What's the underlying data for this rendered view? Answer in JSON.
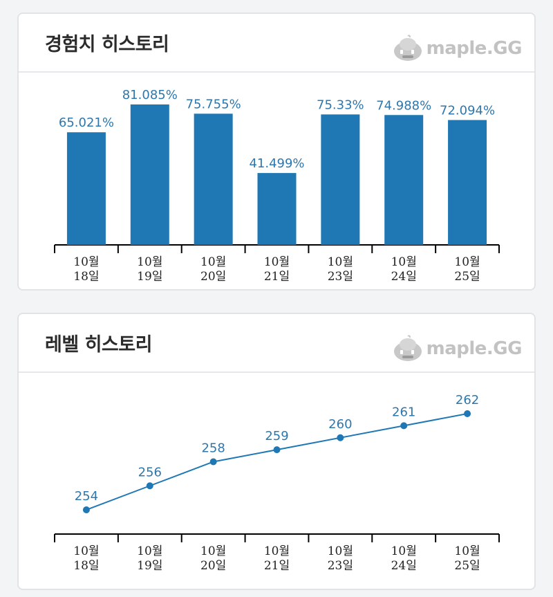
{
  "colors": {
    "bar": "#1f77b4",
    "line": "#1f77b4",
    "data_label": "#2d77ad",
    "axis": "#000000",
    "card_border": "#e1e3e7",
    "brand_text": "#c2c2c2"
  },
  "brand": {
    "name": "maple.GG",
    "icon": "mushroom-mascot-icon"
  },
  "exp_card": {
    "title": "경험치 히스토리"
  },
  "level_card": {
    "title": "레벨 히스토리"
  },
  "chart_data": [
    {
      "type": "bar",
      "title": "경험치 히스토리",
      "categories": [
        "10월\n18일",
        "10월\n19일",
        "10월\n20일",
        "10월\n21일",
        "10월\n23일",
        "10월\n24일",
        "10월\n25일"
      ],
      "category_lines": [
        [
          "10월",
          "18일"
        ],
        [
          "10월",
          "19일"
        ],
        [
          "10월",
          "20일"
        ],
        [
          "10월",
          "21일"
        ],
        [
          "10월",
          "23일"
        ],
        [
          "10월",
          "24일"
        ],
        [
          "10월",
          "25일"
        ]
      ],
      "values": [
        65.021,
        81.085,
        75.755,
        41.499,
        75.33,
        74.988,
        72.094
      ],
      "value_labels": [
        "65.021%",
        "81.085%",
        "75.755%",
        "41.499%",
        "75.33%",
        "74.988%",
        "72.094%"
      ],
      "ylim": [
        0,
        81.085
      ],
      "grid": false,
      "xlabel": "",
      "ylabel": ""
    },
    {
      "type": "line",
      "title": "레벨 히스토리",
      "categories": [
        "10월\n18일",
        "10월\n19일",
        "10월\n20일",
        "10월\n21일",
        "10월\n23일",
        "10월\n24일",
        "10월\n25일"
      ],
      "category_lines": [
        [
          "10월",
          "18일"
        ],
        [
          "10월",
          "19일"
        ],
        [
          "10월",
          "20일"
        ],
        [
          "10월",
          "21일"
        ],
        [
          "10월",
          "23일"
        ],
        [
          "10월",
          "24일"
        ],
        [
          "10월",
          "25일"
        ]
      ],
      "values": [
        254,
        256,
        258,
        259,
        260,
        261,
        262
      ],
      "value_labels": [
        "254",
        "256",
        "258",
        "259",
        "260",
        "261",
        "262"
      ],
      "ylim": [
        254,
        262
      ],
      "grid": false,
      "xlabel": "",
      "ylabel": ""
    }
  ]
}
